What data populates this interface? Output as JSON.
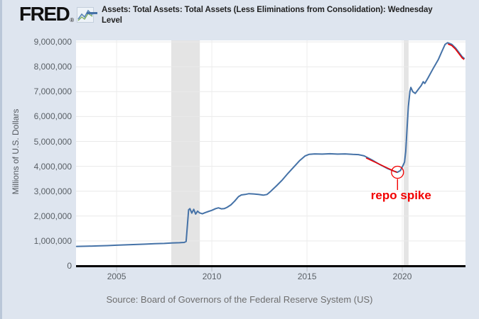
{
  "header": {
    "logo_text": "FRED",
    "registered_mark": "®",
    "legend": {
      "line1": "Assets: Total Assets: Total Assets (Less Eliminations from Consolidation): Wednesday",
      "line2": "Level",
      "series_color": "#4572a7"
    }
  },
  "footer": {
    "source": "Source: Board of Governors of the Federal Reserve System (US)"
  },
  "chart_data": {
    "type": "line",
    "title": "Assets: Total Assets: Total Assets (Less Eliminations from Consolidation): Wednesday Level",
    "units": "Millions of U.S. Dollars",
    "grid": true,
    "legend_position": "top",
    "xaxis": {
      "min": 2002.87,
      "max": 2023.32,
      "ticks": [
        {
          "v": 2005,
          "label": "2005"
        },
        {
          "v": 2010,
          "label": "2010"
        },
        {
          "v": 2015,
          "label": "2015"
        },
        {
          "v": 2020,
          "label": "2020"
        }
      ]
    },
    "yaxis": {
      "title": "Millions of U.S. Dollars",
      "min": 0,
      "max": 9060000,
      "ticks": [
        {
          "v": 0,
          "label": "0"
        },
        {
          "v": 1000000,
          "label": "1,000,000"
        },
        {
          "v": 2000000,
          "label": "2,000,000"
        },
        {
          "v": 3000000,
          "label": "3,000,000"
        },
        {
          "v": 4000000,
          "label": "4,000,000"
        },
        {
          "v": 5000000,
          "label": "5,000,000"
        },
        {
          "v": 6000000,
          "label": "6,000,000"
        },
        {
          "v": 7000000,
          "label": "7,000,000"
        },
        {
          "v": 8000000,
          "label": "8,000,000"
        },
        {
          "v": 9000000,
          "label": "9,000,000"
        }
      ]
    },
    "recession_bands": [
      {
        "start": 2007.87,
        "end": 2009.37
      },
      {
        "start": 2020.08,
        "end": 2020.33
      }
    ],
    "recession_band_color": "#e4e4e4",
    "series": [
      {
        "name": "Assets: Total Assets: Total Assets (Less Eliminations from Consolidation): Wednesday Level",
        "color": "#4572a7",
        "points": [
          [
            2002.9,
            780000
          ],
          [
            2003.5,
            790000
          ],
          [
            2004.0,
            800000
          ],
          [
            2004.5,
            812000
          ],
          [
            2005.0,
            828000
          ],
          [
            2005.5,
            843000
          ],
          [
            2006.0,
            858000
          ],
          [
            2006.5,
            873000
          ],
          [
            2007.0,
            888000
          ],
          [
            2007.5,
            900000
          ],
          [
            2007.9,
            918000
          ],
          [
            2008.3,
            930000
          ],
          [
            2008.55,
            940000
          ],
          [
            2008.65,
            980000
          ],
          [
            2008.7,
            1450000
          ],
          [
            2008.78,
            2250000
          ],
          [
            2008.85,
            2300000
          ],
          [
            2008.95,
            2120000
          ],
          [
            2009.05,
            2270000
          ],
          [
            2009.15,
            2080000
          ],
          [
            2009.25,
            2200000
          ],
          [
            2009.35,
            2130000
          ],
          [
            2009.5,
            2090000
          ],
          [
            2009.65,
            2140000
          ],
          [
            2009.8,
            2180000
          ],
          [
            2010.0,
            2230000
          ],
          [
            2010.2,
            2300000
          ],
          [
            2010.35,
            2330000
          ],
          [
            2010.5,
            2290000
          ],
          [
            2010.65,
            2300000
          ],
          [
            2010.8,
            2350000
          ],
          [
            2011.0,
            2450000
          ],
          [
            2011.2,
            2600000
          ],
          [
            2011.4,
            2780000
          ],
          [
            2011.55,
            2850000
          ],
          [
            2011.75,
            2870000
          ],
          [
            2011.95,
            2900000
          ],
          [
            2012.2,
            2890000
          ],
          [
            2012.45,
            2870000
          ],
          [
            2012.7,
            2840000
          ],
          [
            2012.9,
            2870000
          ],
          [
            2013.1,
            3000000
          ],
          [
            2013.4,
            3220000
          ],
          [
            2013.7,
            3450000
          ],
          [
            2014.0,
            3720000
          ],
          [
            2014.3,
            3970000
          ],
          [
            2014.6,
            4220000
          ],
          [
            2014.9,
            4420000
          ],
          [
            2015.1,
            4480000
          ],
          [
            2015.4,
            4500000
          ],
          [
            2015.8,
            4490000
          ],
          [
            2016.2,
            4505000
          ],
          [
            2016.6,
            4490000
          ],
          [
            2017.0,
            4500000
          ],
          [
            2017.4,
            4480000
          ],
          [
            2017.7,
            4470000
          ],
          [
            2018.0,
            4420000
          ],
          [
            2018.4,
            4260000
          ],
          [
            2018.8,
            4080000
          ],
          [
            2019.2,
            3920000
          ],
          [
            2019.55,
            3810000
          ],
          [
            2019.75,
            3760000
          ],
          [
            2019.9,
            3830000
          ],
          [
            2020.05,
            4050000
          ],
          [
            2020.12,
            4170000
          ],
          [
            2020.18,
            4600000
          ],
          [
            2020.25,
            5500000
          ],
          [
            2020.32,
            6400000
          ],
          [
            2020.4,
            7010000
          ],
          [
            2020.45,
            7170000
          ],
          [
            2020.55,
            7000000
          ],
          [
            2020.68,
            6930000
          ],
          [
            2020.8,
            7050000
          ],
          [
            2021.0,
            7250000
          ],
          [
            2021.1,
            7400000
          ],
          [
            2021.18,
            7330000
          ],
          [
            2021.35,
            7550000
          ],
          [
            2021.6,
            7900000
          ],
          [
            2021.9,
            8300000
          ],
          [
            2022.1,
            8650000
          ],
          [
            2022.25,
            8900000
          ],
          [
            2022.38,
            8965000
          ],
          [
            2022.6,
            8900000
          ],
          [
            2022.8,
            8750000
          ],
          [
            2023.0,
            8550000
          ],
          [
            2023.15,
            8400000
          ],
          [
            2023.25,
            8340000
          ]
        ]
      }
    ],
    "annotation": {
      "label": "repo spike",
      "color": "#f20000",
      "circle": {
        "x": 2019.75,
        "y": 3760000,
        "r": 8.5
      },
      "trend_lines": [
        [
          [
            2018.1,
            4370000
          ],
          [
            2019.72,
            3785000
          ]
        ],
        [
          [
            2022.4,
            8950000
          ],
          [
            2022.6,
            8885000
          ],
          [
            2022.8,
            8735000
          ],
          [
            2023.0,
            8535000
          ],
          [
            2023.15,
            8385000
          ],
          [
            2023.25,
            8325000
          ]
        ]
      ]
    }
  }
}
